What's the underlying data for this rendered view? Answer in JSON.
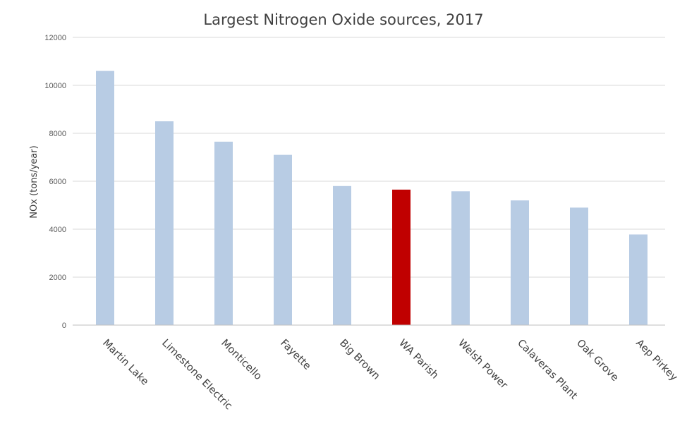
{
  "chart_data": {
    "type": "bar",
    "title": "Largest Nitrogen Oxide sources, 2017",
    "xlabel": "",
    "ylabel": "NOx (tons/year)",
    "ylim": [
      0,
      12000
    ],
    "yticks": [
      0,
      2000,
      4000,
      6000,
      8000,
      10000,
      12000
    ],
    "grid": true,
    "categories": [
      "Martin Lake",
      "Limestone Electric",
      "Monticello",
      "Fayette",
      "Big Brown",
      "WA Parish",
      "Welsh Power",
      "Calaveras Plant",
      "Oak Grove",
      "Aep Pirkey"
    ],
    "values": [
      10600,
      8500,
      7650,
      7100,
      5800,
      5650,
      5580,
      5200,
      4900,
      3780
    ],
    "highlight_category": "WA Parish",
    "colors": {
      "bar": "#b8cce4",
      "highlight": "#c00000"
    }
  }
}
